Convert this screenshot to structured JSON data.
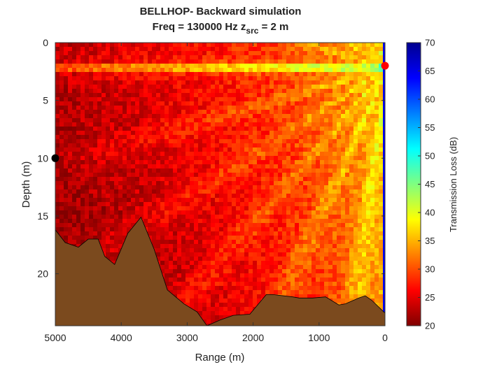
{
  "chart_data": {
    "type": "heatmap",
    "title_line1": "BELLHOP- Backward simulation",
    "title_line2_prefix": "Freq = 130000 Hz    z",
    "title_line2_sub": "src",
    "title_line2_suffix": " = 2 m",
    "xlabel": "Range (m)",
    "ylabel": "Depth (m)",
    "xlim": [
      5000,
      0
    ],
    "ylim": [
      0,
      24.5
    ],
    "x_ticks": [
      5000,
      4000,
      3000,
      2000,
      1000,
      0
    ],
    "x_tick_labels": [
      "5000",
      "4000",
      "3000",
      "2000",
      "1000",
      "0"
    ],
    "y_ticks": [
      0,
      5,
      10,
      15,
      20
    ],
    "y_tick_labels": [
      "0",
      "5",
      "10",
      "15",
      "20"
    ],
    "colorbar": {
      "label": "Transmission Loss (dB)",
      "range": [
        20,
        70
      ],
      "ticks": [
        20,
        25,
        30,
        35,
        40,
        45,
        50,
        55,
        60,
        65,
        70
      ],
      "tick_labels": [
        "20",
        "25",
        "30",
        "35",
        "40",
        "45",
        "50",
        "55",
        "60",
        "65",
        "70"
      ],
      "colormap": "jet-reversed"
    },
    "source_marker": {
      "range": 0,
      "depth": 2,
      "color": "#ff0000"
    },
    "receiver_marker": {
      "range": 5000,
      "depth": 10,
      "color": "#000000"
    },
    "seabed_color": "#7b4a1e",
    "bathymetry": {
      "range": [
        5000,
        4850,
        4650,
        4500,
        4350,
        4250,
        4100,
        3900,
        3700,
        3500,
        3300,
        3050,
        2850,
        2700,
        2500,
        2300,
        2050,
        1800,
        1700,
        1400,
        1300,
        1100,
        900,
        700,
        600,
        400,
        300,
        200,
        0
      ],
      "depth": [
        16.2,
        17.3,
        17.7,
        17.0,
        17.0,
        18.5,
        19.2,
        16.5,
        15.1,
        17.9,
        21.4,
        22.6,
        23.3,
        24.5,
        24.0,
        23.6,
        23.5,
        21.8,
        21.8,
        22.0,
        22.1,
        22.1,
        22.0,
        22.7,
        22.6,
        22.1,
        21.9,
        22.3,
        23.4
      ]
    }
  }
}
